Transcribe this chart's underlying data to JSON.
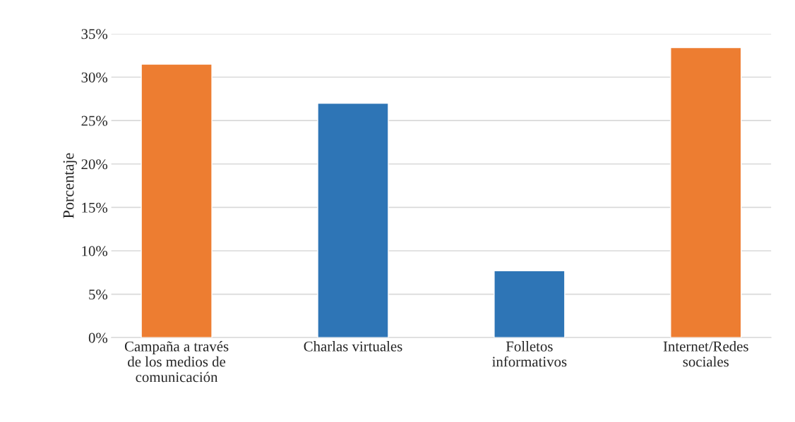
{
  "chart_data": {
    "type": "bar",
    "ylabel": "Porcentaje",
    "categories": [
      "Campaña a través\nde los medios de\ncomunicación",
      "Charlas virtuales",
      "Folletos\ninformativos",
      "Internet/Redes\nsociales"
    ],
    "values": [
      31.5,
      27,
      7.7,
      33.4
    ],
    "colors": [
      "#ed7d31",
      "#2e75b6",
      "#2e75b6",
      "#ed7d31"
    ],
    "ylim": [
      0,
      35
    ],
    "yticks": [
      {
        "value": 0,
        "label": "0%"
      },
      {
        "value": 5,
        "label": "5%"
      },
      {
        "value": 10,
        "label": "10%"
      },
      {
        "value": 15,
        "label": "15%"
      },
      {
        "value": 20,
        "label": "20%"
      },
      {
        "value": 25,
        "label": "25%"
      },
      {
        "value": 30,
        "label": "30%"
      },
      {
        "value": 35,
        "label": "35%"
      }
    ],
    "grid": "y",
    "legend": false
  }
}
